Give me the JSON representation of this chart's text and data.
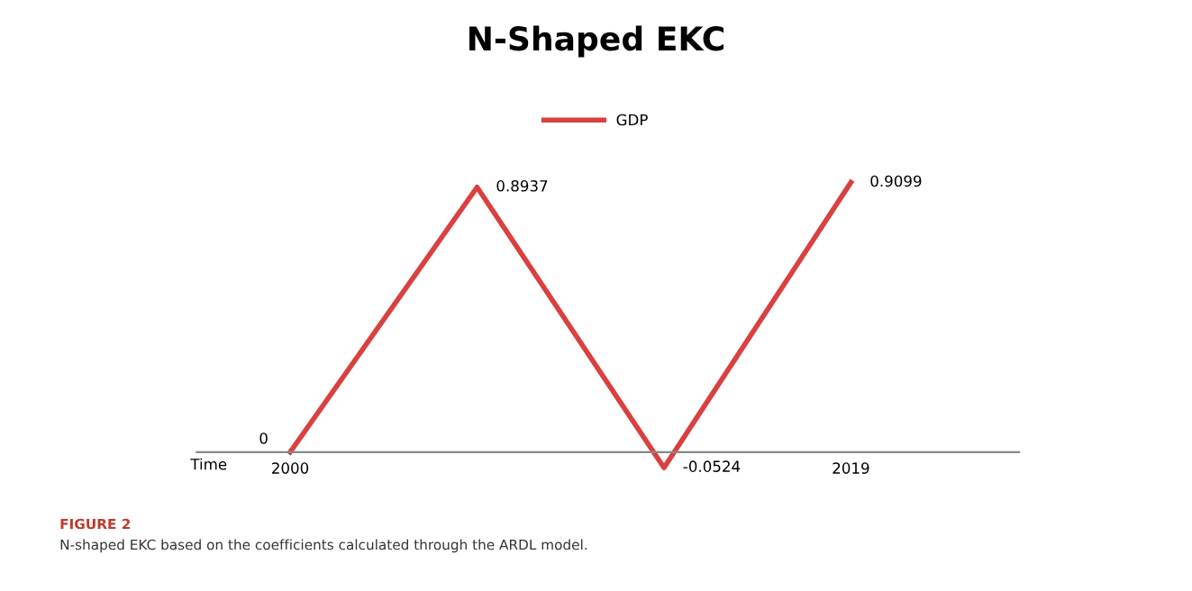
{
  "chart_data": {
    "type": "line",
    "title": "N-Shaped EKC",
    "xlabel": "Time",
    "categories": [
      "2000",
      null,
      null,
      "2019"
    ],
    "series": [
      {
        "name": "GDP",
        "color": "#d94141",
        "values": [
          0,
          0.8937,
          -0.0524,
          0.9099
        ]
      }
    ],
    "data_labels": true,
    "legend": "top",
    "grid": false,
    "marker": "none",
    "line_style": "solid",
    "annotations": [
      "FIGURE 2",
      "N-shaped EKC based on the coefficients calculated through the ARDL model."
    ]
  }
}
